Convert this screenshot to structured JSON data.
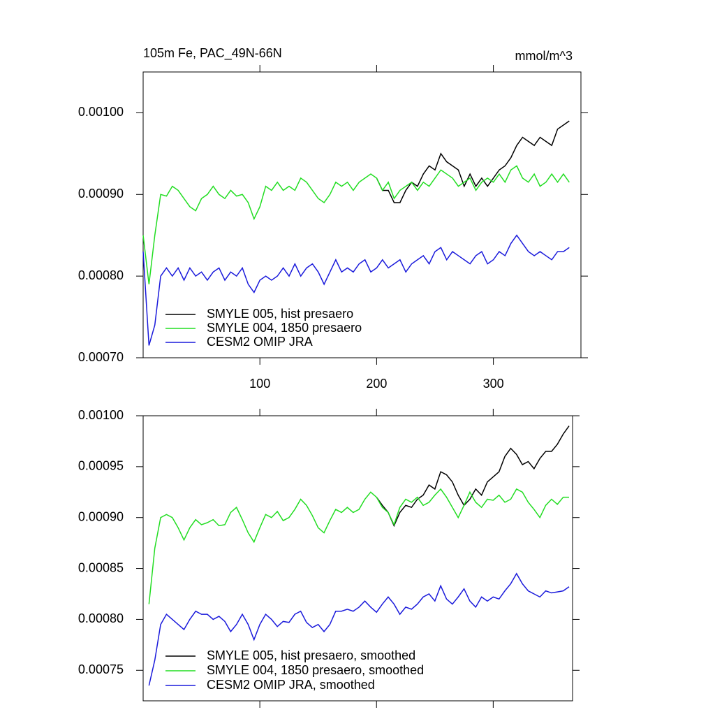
{
  "chart_data": [
    {
      "type": "line",
      "title": "105m Fe, PAC_49N-66N",
      "units": "mmol/m^3",
      "x": [
        0,
        5,
        10,
        15,
        20,
        25,
        30,
        35,
        40,
        45,
        50,
        55,
        60,
        65,
        70,
        75,
        80,
        85,
        90,
        95,
        100,
        105,
        110,
        115,
        120,
        125,
        130,
        135,
        140,
        145,
        150,
        155,
        160,
        165,
        170,
        175,
        180,
        185,
        190,
        195,
        200,
        205,
        210,
        215,
        220,
        225,
        230,
        235,
        240,
        245,
        250,
        255,
        260,
        265,
        270,
        275,
        280,
        285,
        290,
        295,
        300,
        305,
        310,
        315,
        320,
        325,
        330,
        335,
        340,
        345,
        350,
        355,
        360,
        365
      ],
      "xlim": [
        0,
        375
      ],
      "xticks": [
        100,
        200,
        300
      ],
      "ylim": [
        0.0007,
        0.00105
      ],
      "yticks": [
        {
          "value": 0.0007,
          "label": "0.00070"
        },
        {
          "value": 0.0008,
          "label": "0.00080"
        },
        {
          "value": 0.0009,
          "label": "0.00090"
        },
        {
          "value": 0.001,
          "label": "0.00100"
        }
      ],
      "legend": "lower left",
      "series": [
        {
          "name": "SMYLE 005, hist presaero",
          "color": "#000000",
          "values": [
            null,
            null,
            null,
            null,
            null,
            null,
            null,
            null,
            null,
            null,
            null,
            null,
            null,
            null,
            null,
            null,
            null,
            null,
            null,
            null,
            null,
            null,
            null,
            null,
            null,
            null,
            null,
            null,
            null,
            null,
            null,
            null,
            null,
            null,
            null,
            null,
            null,
            null,
            null,
            null,
            0.00092,
            0.000905,
            0.000905,
            0.00089,
            0.00089,
            0.000905,
            0.000915,
            0.00091,
            0.000925,
            0.000935,
            0.00093,
            0.00095,
            0.00094,
            0.000935,
            0.00093,
            0.00091,
            0.000925,
            0.00091,
            0.00092,
            0.00091,
            0.00092,
            0.00093,
            0.000935,
            0.000945,
            0.00096,
            0.00097,
            0.000965,
            0.00096,
            0.00097,
            0.000965,
            0.00096,
            0.00098,
            0.000985,
            0.00099
          ]
        },
        {
          "name": "SMYLE 004, 1850 presaero",
          "color": "#22dd22",
          "values": [
            0.00085,
            0.00079,
            0.00085,
            0.0009,
            0.000898,
            0.00091,
            0.000905,
            0.000895,
            0.000885,
            0.00088,
            0.000895,
            0.0009,
            0.00091,
            0.0009,
            0.000895,
            0.000905,
            0.000898,
            0.0009,
            0.00089,
            0.00087,
            0.000885,
            0.00091,
            0.000905,
            0.000915,
            0.000905,
            0.00091,
            0.000905,
            0.00092,
            0.000915,
            0.000905,
            0.000895,
            0.00089,
            0.0009,
            0.000915,
            0.00091,
            0.000915,
            0.000905,
            0.000915,
            0.00092,
            0.000925,
            0.00092,
            0.000905,
            0.000915,
            0.000895,
            0.000905,
            0.00091,
            0.000915,
            0.000905,
            0.000915,
            0.00091,
            0.00092,
            0.00093,
            0.000925,
            0.00092,
            0.00091,
            0.000915,
            0.00092,
            0.000905,
            0.000915,
            0.00092,
            0.000915,
            0.000925,
            0.000915,
            0.00093,
            0.000935,
            0.00092,
            0.000915,
            0.000925,
            0.00091,
            0.000915,
            0.000925,
            0.000915,
            0.000925,
            0.000915
          ]
        },
        {
          "name": "CESM2 OMIP JRA",
          "color": "#1a1adb",
          "values": [
            0.00083,
            0.000715,
            0.00074,
            0.0008,
            0.00081,
            0.0008,
            0.00081,
            0.000795,
            0.00081,
            0.0008,
            0.000805,
            0.000795,
            0.000805,
            0.00081,
            0.000795,
            0.000805,
            0.0008,
            0.00081,
            0.00079,
            0.00078,
            0.000795,
            0.0008,
            0.000795,
            0.0008,
            0.00081,
            0.0008,
            0.000815,
            0.0008,
            0.00081,
            0.000815,
            0.000805,
            0.00079,
            0.000805,
            0.00082,
            0.000805,
            0.00081,
            0.000805,
            0.000815,
            0.00082,
            0.000805,
            0.00081,
            0.00082,
            0.00081,
            0.000815,
            0.00082,
            0.000805,
            0.000815,
            0.00082,
            0.000825,
            0.000815,
            0.00083,
            0.000835,
            0.00082,
            0.00083,
            0.000825,
            0.00082,
            0.000815,
            0.000825,
            0.00083,
            0.000815,
            0.00082,
            0.00083,
            0.000825,
            0.00084,
            0.00085,
            0.00084,
            0.00083,
            0.000825,
            0.00083,
            0.000825,
            0.00082,
            0.00083,
            0.00083,
            0.000835
          ]
        }
      ]
    },
    {
      "type": "line",
      "x": [
        5,
        10,
        15,
        20,
        25,
        30,
        35,
        40,
        45,
        50,
        55,
        60,
        65,
        70,
        75,
        80,
        85,
        90,
        95,
        100,
        105,
        110,
        115,
        120,
        125,
        130,
        135,
        140,
        145,
        150,
        155,
        160,
        165,
        170,
        175,
        180,
        185,
        190,
        195,
        200,
        205,
        210,
        215,
        220,
        225,
        230,
        235,
        240,
        245,
        250,
        255,
        260,
        265,
        270,
        275,
        280,
        285,
        290,
        295,
        300,
        305,
        310,
        315,
        320,
        325,
        330,
        335,
        340,
        345,
        350,
        355,
        360,
        365
      ],
      "xlim": [
        0,
        368
      ],
      "ylim": [
        0.00072,
        0.001
      ],
      "yticks": [
        {
          "value": 0.00075,
          "label": "0.00075"
        },
        {
          "value": 0.0008,
          "label": "0.00080"
        },
        {
          "value": 0.00085,
          "label": "0.00085"
        },
        {
          "value": 0.0009,
          "label": "0.00090"
        },
        {
          "value": 0.00095,
          "label": "0.00095"
        },
        {
          "value": 0.001,
          "label": "0.00100"
        }
      ],
      "legend": "lower left",
      "series": [
        {
          "name": "SMYLE 005, hist presaero, smoothed",
          "color": "#000000",
          "values": [
            null,
            null,
            null,
            null,
            null,
            null,
            null,
            null,
            null,
            null,
            null,
            null,
            null,
            null,
            null,
            null,
            null,
            null,
            null,
            null,
            null,
            null,
            null,
            null,
            null,
            null,
            null,
            null,
            null,
            null,
            null,
            null,
            null,
            null,
            null,
            null,
            null,
            null,
            null,
            0.00092,
            0.000912,
            0.000905,
            0.000892,
            0.000905,
            0.000912,
            0.00091,
            0.000918,
            0.000922,
            0.000932,
            0.000928,
            0.000945,
            0.000942,
            0.000935,
            0.000922,
            0.000912,
            0.000918,
            0.000928,
            0.000922,
            0.000935,
            0.00094,
            0.000945,
            0.00096,
            0.000968,
            0.000962,
            0.000952,
            0.000955,
            0.000948,
            0.000958,
            0.000965,
            0.000965,
            0.000972,
            0.000982,
            0.00099
          ]
        },
        {
          "name": "SMYLE 004, 1850 presaero, smoothed",
          "color": "#22dd22",
          "values": [
            0.000815,
            0.00087,
            0.0009,
            0.000903,
            0.0009,
            0.00089,
            0.000878,
            0.00089,
            0.000898,
            0.000893,
            0.000895,
            0.000898,
            0.000892,
            0.000893,
            0.000905,
            0.00091,
            0.000898,
            0.000885,
            0.000876,
            0.00089,
            0.000903,
            0.0009,
            0.000906,
            0.000897,
            0.0009,
            0.000908,
            0.000918,
            0.000912,
            0.000902,
            0.00089,
            0.000885,
            0.000897,
            0.000908,
            0.000905,
            0.00091,
            0.000905,
            0.000908,
            0.000918,
            0.000925,
            0.00092,
            0.00091,
            0.000905,
            0.000893,
            0.00091,
            0.000918,
            0.000915,
            0.00092,
            0.000912,
            0.000915,
            0.000922,
            0.000928,
            0.00092,
            0.00091,
            0.0009,
            0.000912,
            0.000925,
            0.000915,
            0.00091,
            0.000918,
            0.000917,
            0.000922,
            0.000915,
            0.000918,
            0.000928,
            0.000925,
            0.000915,
            0.000908,
            0.0009,
            0.000912,
            0.000918,
            0.000913,
            0.00092,
            0.00092
          ]
        },
        {
          "name": "CESM2 OMIP JRA, smoothed",
          "color": "#1a1adb",
          "values": [
            0.000735,
            0.00076,
            0.000795,
            0.000805,
            0.0008,
            0.000795,
            0.00079,
            0.0008,
            0.000808,
            0.000805,
            0.000805,
            0.0008,
            0.000803,
            0.000798,
            0.000788,
            0.000795,
            0.000805,
            0.000795,
            0.00078,
            0.000795,
            0.000805,
            0.0008,
            0.000793,
            0.000798,
            0.000797,
            0.000805,
            0.000808,
            0.000797,
            0.000792,
            0.000795,
            0.000788,
            0.000795,
            0.000808,
            0.000808,
            0.00081,
            0.000808,
            0.000812,
            0.000818,
            0.000812,
            0.000807,
            0.000815,
            0.000822,
            0.000815,
            0.000805,
            0.000812,
            0.00081,
            0.000815,
            0.000822,
            0.000825,
            0.000818,
            0.000833,
            0.00082,
            0.000815,
            0.000822,
            0.00083,
            0.000818,
            0.000812,
            0.000822,
            0.000818,
            0.000822,
            0.00082,
            0.000828,
            0.000835,
            0.000845,
            0.000835,
            0.000828,
            0.000825,
            0.000822,
            0.000828,
            0.000826,
            0.000827,
            0.000828,
            0.000832
          ]
        }
      ]
    }
  ]
}
